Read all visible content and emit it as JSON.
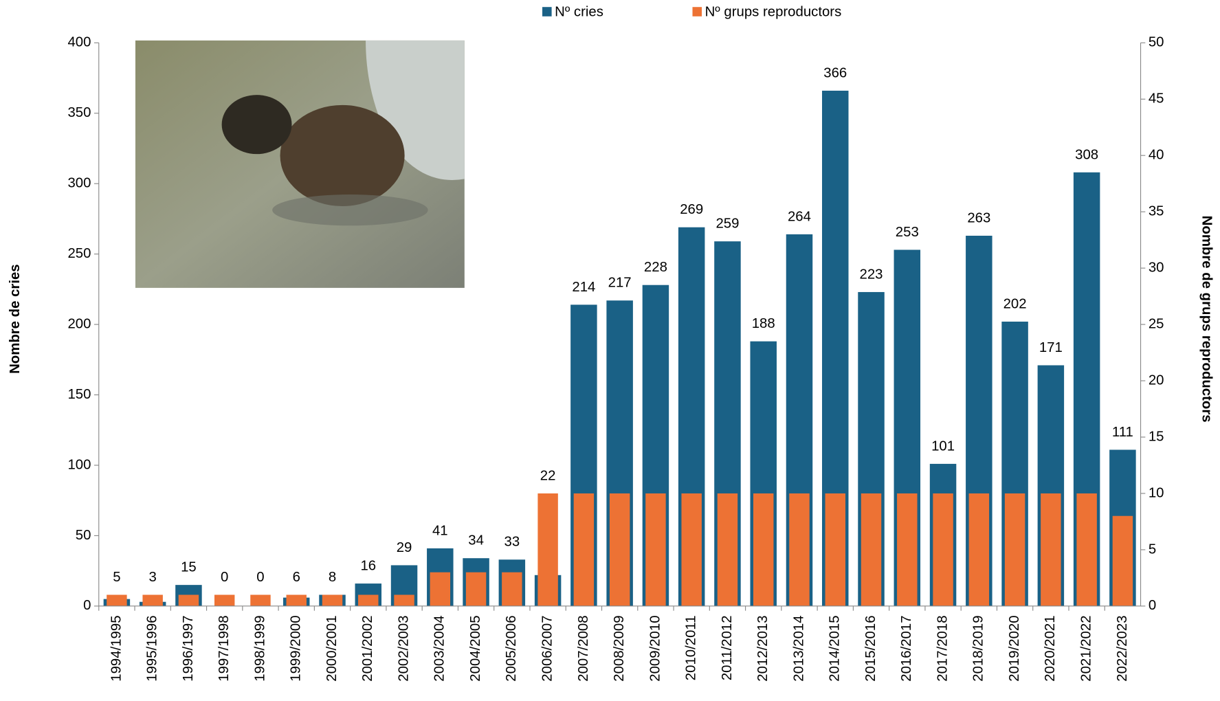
{
  "chart_data": {
    "type": "bar",
    "categories": [
      "1994/1995",
      "1995/1996",
      "1996/1997",
      "1997/1998",
      "1998/1999",
      "1999/2000",
      "2000/2001",
      "2001/2002",
      "2002/2003",
      "2003/2004",
      "2004/2005",
      "2005/2006",
      "2006/2007",
      "2007/2008",
      "2008/2009",
      "2009/2010",
      "2010/2011",
      "2011/2012",
      "2012/2013",
      "2013/2014",
      "2014/2015",
      "2015/2016",
      "2016/2017",
      "2017/2018",
      "2018/2019",
      "2019/2020",
      "2020/2021",
      "2021/2022",
      "2022/2023"
    ],
    "series": [
      {
        "name": "Nº cries",
        "color": "#1a6186",
        "values": [
          5,
          3,
          15,
          0,
          0,
          6,
          8,
          16,
          29,
          41,
          34,
          33,
          22,
          214,
          217,
          228,
          269,
          259,
          188,
          264,
          366,
          223,
          253,
          101,
          263,
          202,
          171,
          308,
          111
        ]
      },
      {
        "name": "Nº grups reproductors",
        "color": "#ed7234",
        "axis": "y2",
        "values": [
          1,
          1,
          1,
          1,
          1,
          1,
          1,
          1,
          1,
          3,
          3,
          3,
          10,
          10,
          10,
          10,
          10,
          10,
          10,
          10,
          10,
          10,
          10,
          10,
          10,
          10,
          10,
          10,
          8
        ]
      }
    ],
    "ylabel": "Nombre de cries",
    "y2label": "Nombre de grups reproductors",
    "ylim": [
      0,
      400
    ],
    "yticks": [
      0,
      50,
      100,
      150,
      200,
      250,
      300,
      350,
      400
    ],
    "y2lim": [
      0,
      50
    ],
    "y2ticks": [
      0,
      5,
      10,
      15,
      20,
      25,
      30,
      35,
      40,
      45,
      50
    ],
    "legend": "top"
  }
}
